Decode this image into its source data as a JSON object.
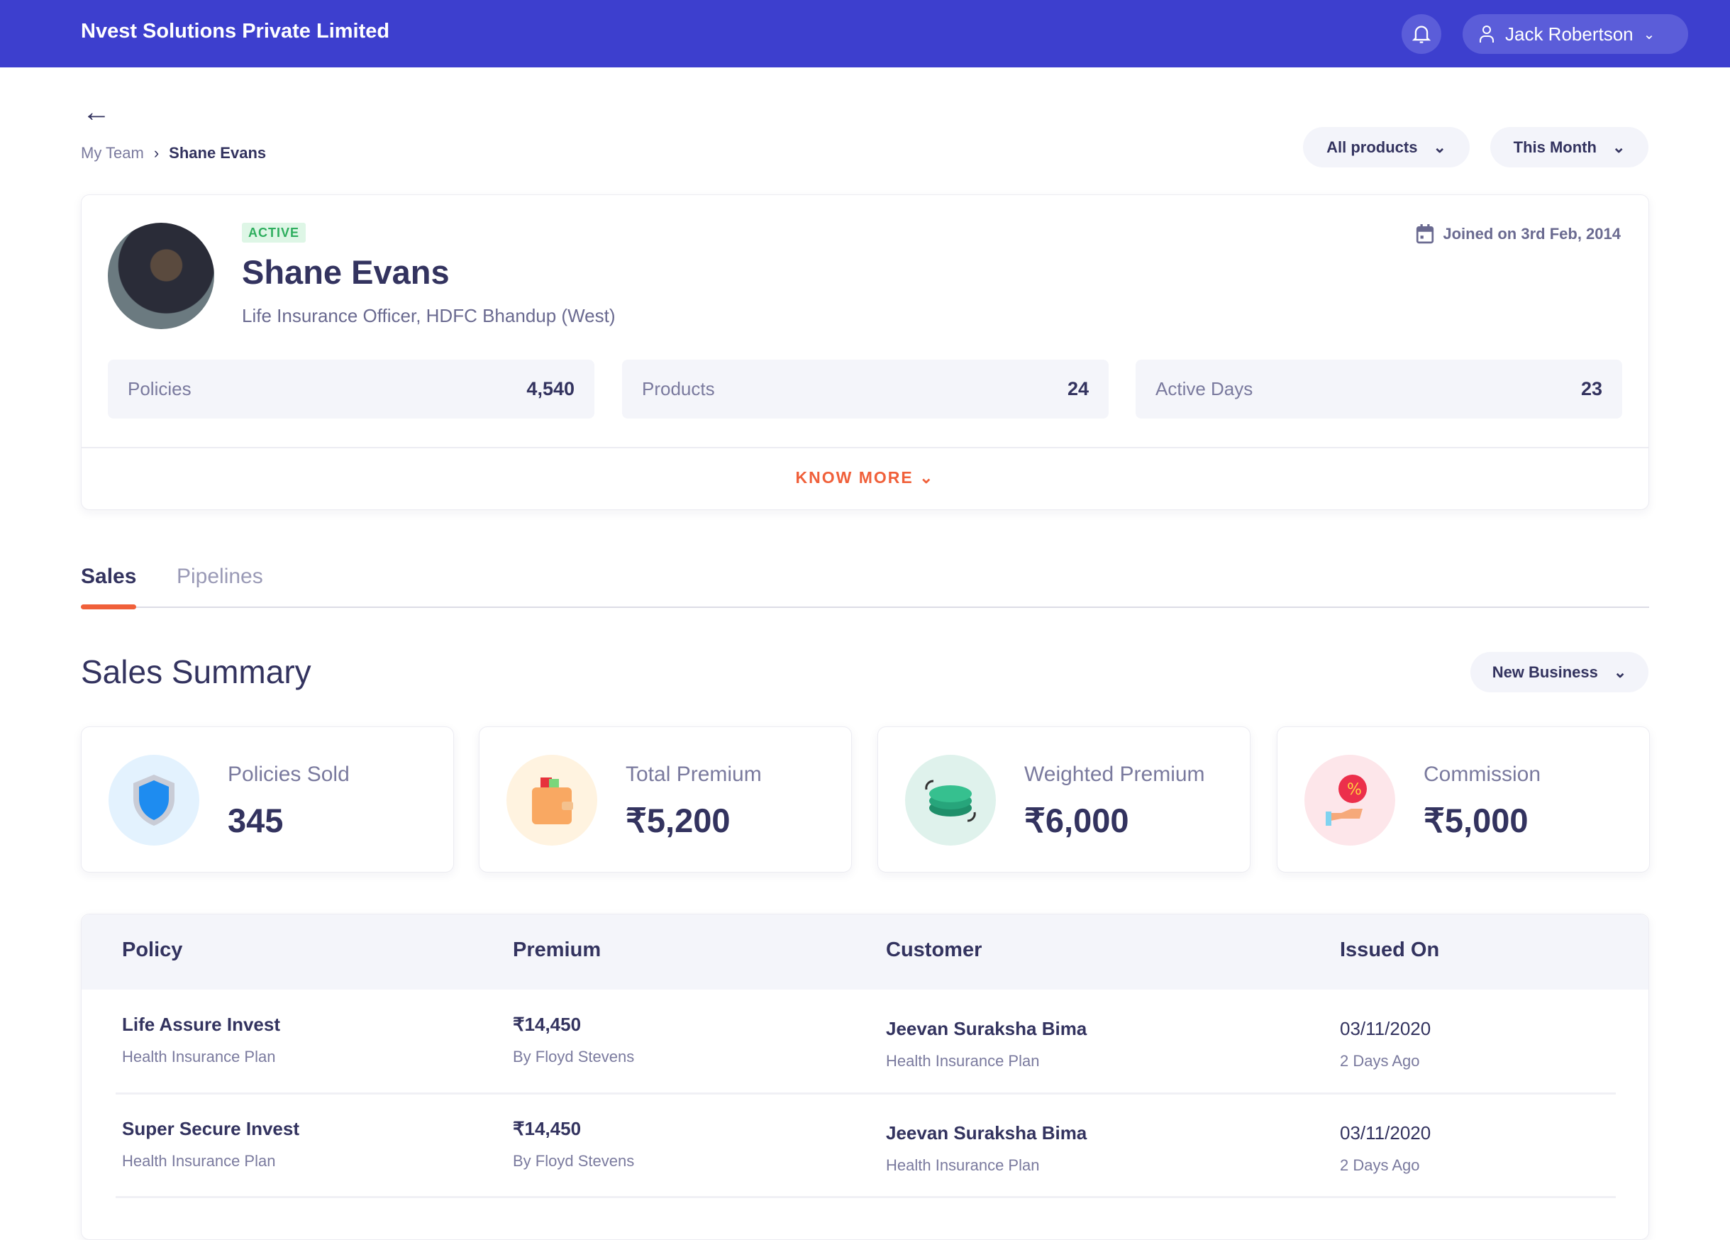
{
  "header": {
    "company": "Nvest Solutions Private Limited",
    "user": "Jack Robertson",
    "colors": {
      "brand": "#3d3fce",
      "accent": "#f0603a"
    }
  },
  "breadcrumb": {
    "parent": "My Team",
    "current": "Shane Evans"
  },
  "filters": {
    "products": "All products",
    "period": "This Month"
  },
  "profile": {
    "status": "ACTIVE",
    "name": "Shane Evans",
    "title": "Life Insurance Officer, HDFC Bhandup (West)",
    "joined": "Joined on 3rd Feb, 2014",
    "stats": [
      {
        "label": "Policies",
        "value": "4,540"
      },
      {
        "label": "Products",
        "value": "24"
      },
      {
        "label": "Active Days",
        "value": "23"
      }
    ],
    "know_more": "KNOW MORE"
  },
  "tabs": [
    {
      "label": "Sales",
      "active": true
    },
    {
      "label": "Pipelines",
      "active": false
    }
  ],
  "summary": {
    "title": "Sales Summary",
    "filter": "New Business",
    "cards": [
      {
        "label": "Policies Sold",
        "value": "345",
        "icon": "shield-icon"
      },
      {
        "label": "Total Premium",
        "value": "₹5,200",
        "icon": "wallet-icon"
      },
      {
        "label": "Weighted Premium",
        "value": "₹6,000",
        "icon": "coins-icon"
      },
      {
        "label": "Commission",
        "value": "₹5,000",
        "icon": "commission-hand-icon"
      }
    ]
  },
  "table": {
    "columns": [
      "Policy",
      "Premium",
      "Customer",
      "Issued On"
    ],
    "rows": [
      {
        "policy": "Life Assure Invest",
        "policy_sub": "Health Insurance Plan",
        "premium": "₹14,450",
        "premium_sub": "By Floyd Stevens",
        "customer": "Jeevan Suraksha Bima",
        "customer_sub": "Health Insurance Plan",
        "issued": "03/11/2020",
        "issued_sub": "2 Days Ago"
      },
      {
        "policy": "Super Secure Invest",
        "policy_sub": "Health Insurance Plan",
        "premium": "₹14,450",
        "premium_sub": "By Floyd Stevens",
        "customer": "Jeevan Suraksha Bima",
        "customer_sub": "Health Insurance Plan",
        "issued": "03/11/2020",
        "issued_sub": "2 Days Ago"
      }
    ]
  }
}
